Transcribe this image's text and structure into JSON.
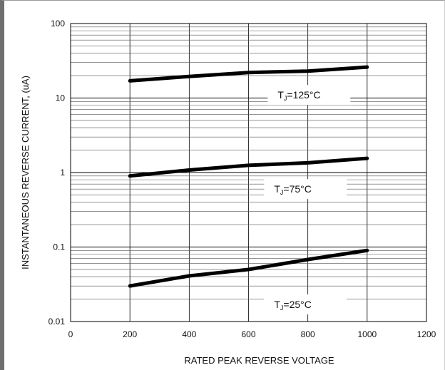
{
  "chart_data": {
    "type": "line",
    "title": "",
    "xlabel": "RATED PEAK REVERSE VOLTAGE",
    "ylabel": "INSTANTANEOUS REVERSE CURRENT, (uA)",
    "xlim": [
      0,
      1200
    ],
    "ylim": [
      0.01,
      100
    ],
    "yscale": "log",
    "grid": true,
    "x_ticks": [
      "0",
      "200",
      "400",
      "600",
      "800",
      "1000",
      "1200"
    ],
    "y_ticks": [
      "0.01",
      "0.1",
      "1",
      "10",
      "100"
    ],
    "series": [
      {
        "label_main": "T",
        "label_sub": "J",
        "label_rest": "=125°C",
        "x": [
          200,
          400,
          600,
          800,
          1000
        ],
        "values": [
          17,
          19.5,
          22,
          23,
          26
        ]
      },
      {
        "label_main": "T",
        "label_sub": "J",
        "label_rest": "=75°C",
        "x": [
          200,
          400,
          600,
          800,
          1000
        ],
        "values": [
          0.9,
          1.08,
          1.25,
          1.35,
          1.55
        ]
      },
      {
        "label_main": "T",
        "label_sub": "J",
        "label_rest": "=25°C",
        "x": [
          200,
          400,
          600,
          800,
          1000
        ],
        "values": [
          0.03,
          0.041,
          0.05,
          0.068,
          0.09
        ]
      }
    ]
  }
}
